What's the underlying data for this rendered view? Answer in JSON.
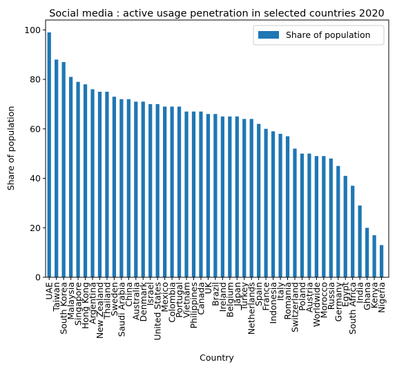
{
  "chart_data": {
    "type": "bar",
    "title": "Social media : active usage penetration in selected countries 2020",
    "xlabel": "Country",
    "ylabel": "Share of population",
    "ylim": [
      0,
      104
    ],
    "yticks": [
      0,
      20,
      40,
      60,
      80,
      100
    ],
    "grid": false,
    "legend_position": "top-right",
    "color": "#1f77b4",
    "categories": [
      "UAE",
      "Taiwan",
      "South Korea",
      "Malaysia",
      "Singapore",
      "Hong Kong",
      "Argentina",
      "New Zealand",
      "Thailand",
      "Sweden",
      "Saudi Arabia",
      "China",
      "Australia",
      "Denmark",
      "Israel",
      "United States",
      "Mexico",
      "Colombia",
      "Portugal",
      "Vietnam",
      "Philippines",
      "Canada",
      "UK",
      "Brazil",
      "Ireland",
      "Belgium",
      "Japan",
      "Turkey",
      "Netherlands",
      "Spain",
      "France",
      "Indonesia",
      "Italy",
      "Romania",
      "Switzerland",
      "Poland",
      "Austria",
      "Worldwide",
      "Morocco",
      "Russia",
      "Germany",
      "Egypt",
      "South Africa",
      "India",
      "Ghana",
      "Kenya",
      "Nigeria"
    ],
    "series": [
      {
        "name": "Share of population",
        "values": [
          99,
          88,
          87,
          81,
          79,
          78,
          76,
          75,
          75,
          73,
          72,
          72,
          71,
          71,
          70,
          70,
          69,
          69,
          69,
          67,
          67,
          67,
          66,
          66,
          65,
          65,
          65,
          64,
          64,
          62,
          60,
          59,
          58,
          57,
          52,
          50,
          50,
          49,
          49,
          48,
          45,
          41,
          37,
          29,
          20,
          17,
          13
        ]
      }
    ]
  }
}
